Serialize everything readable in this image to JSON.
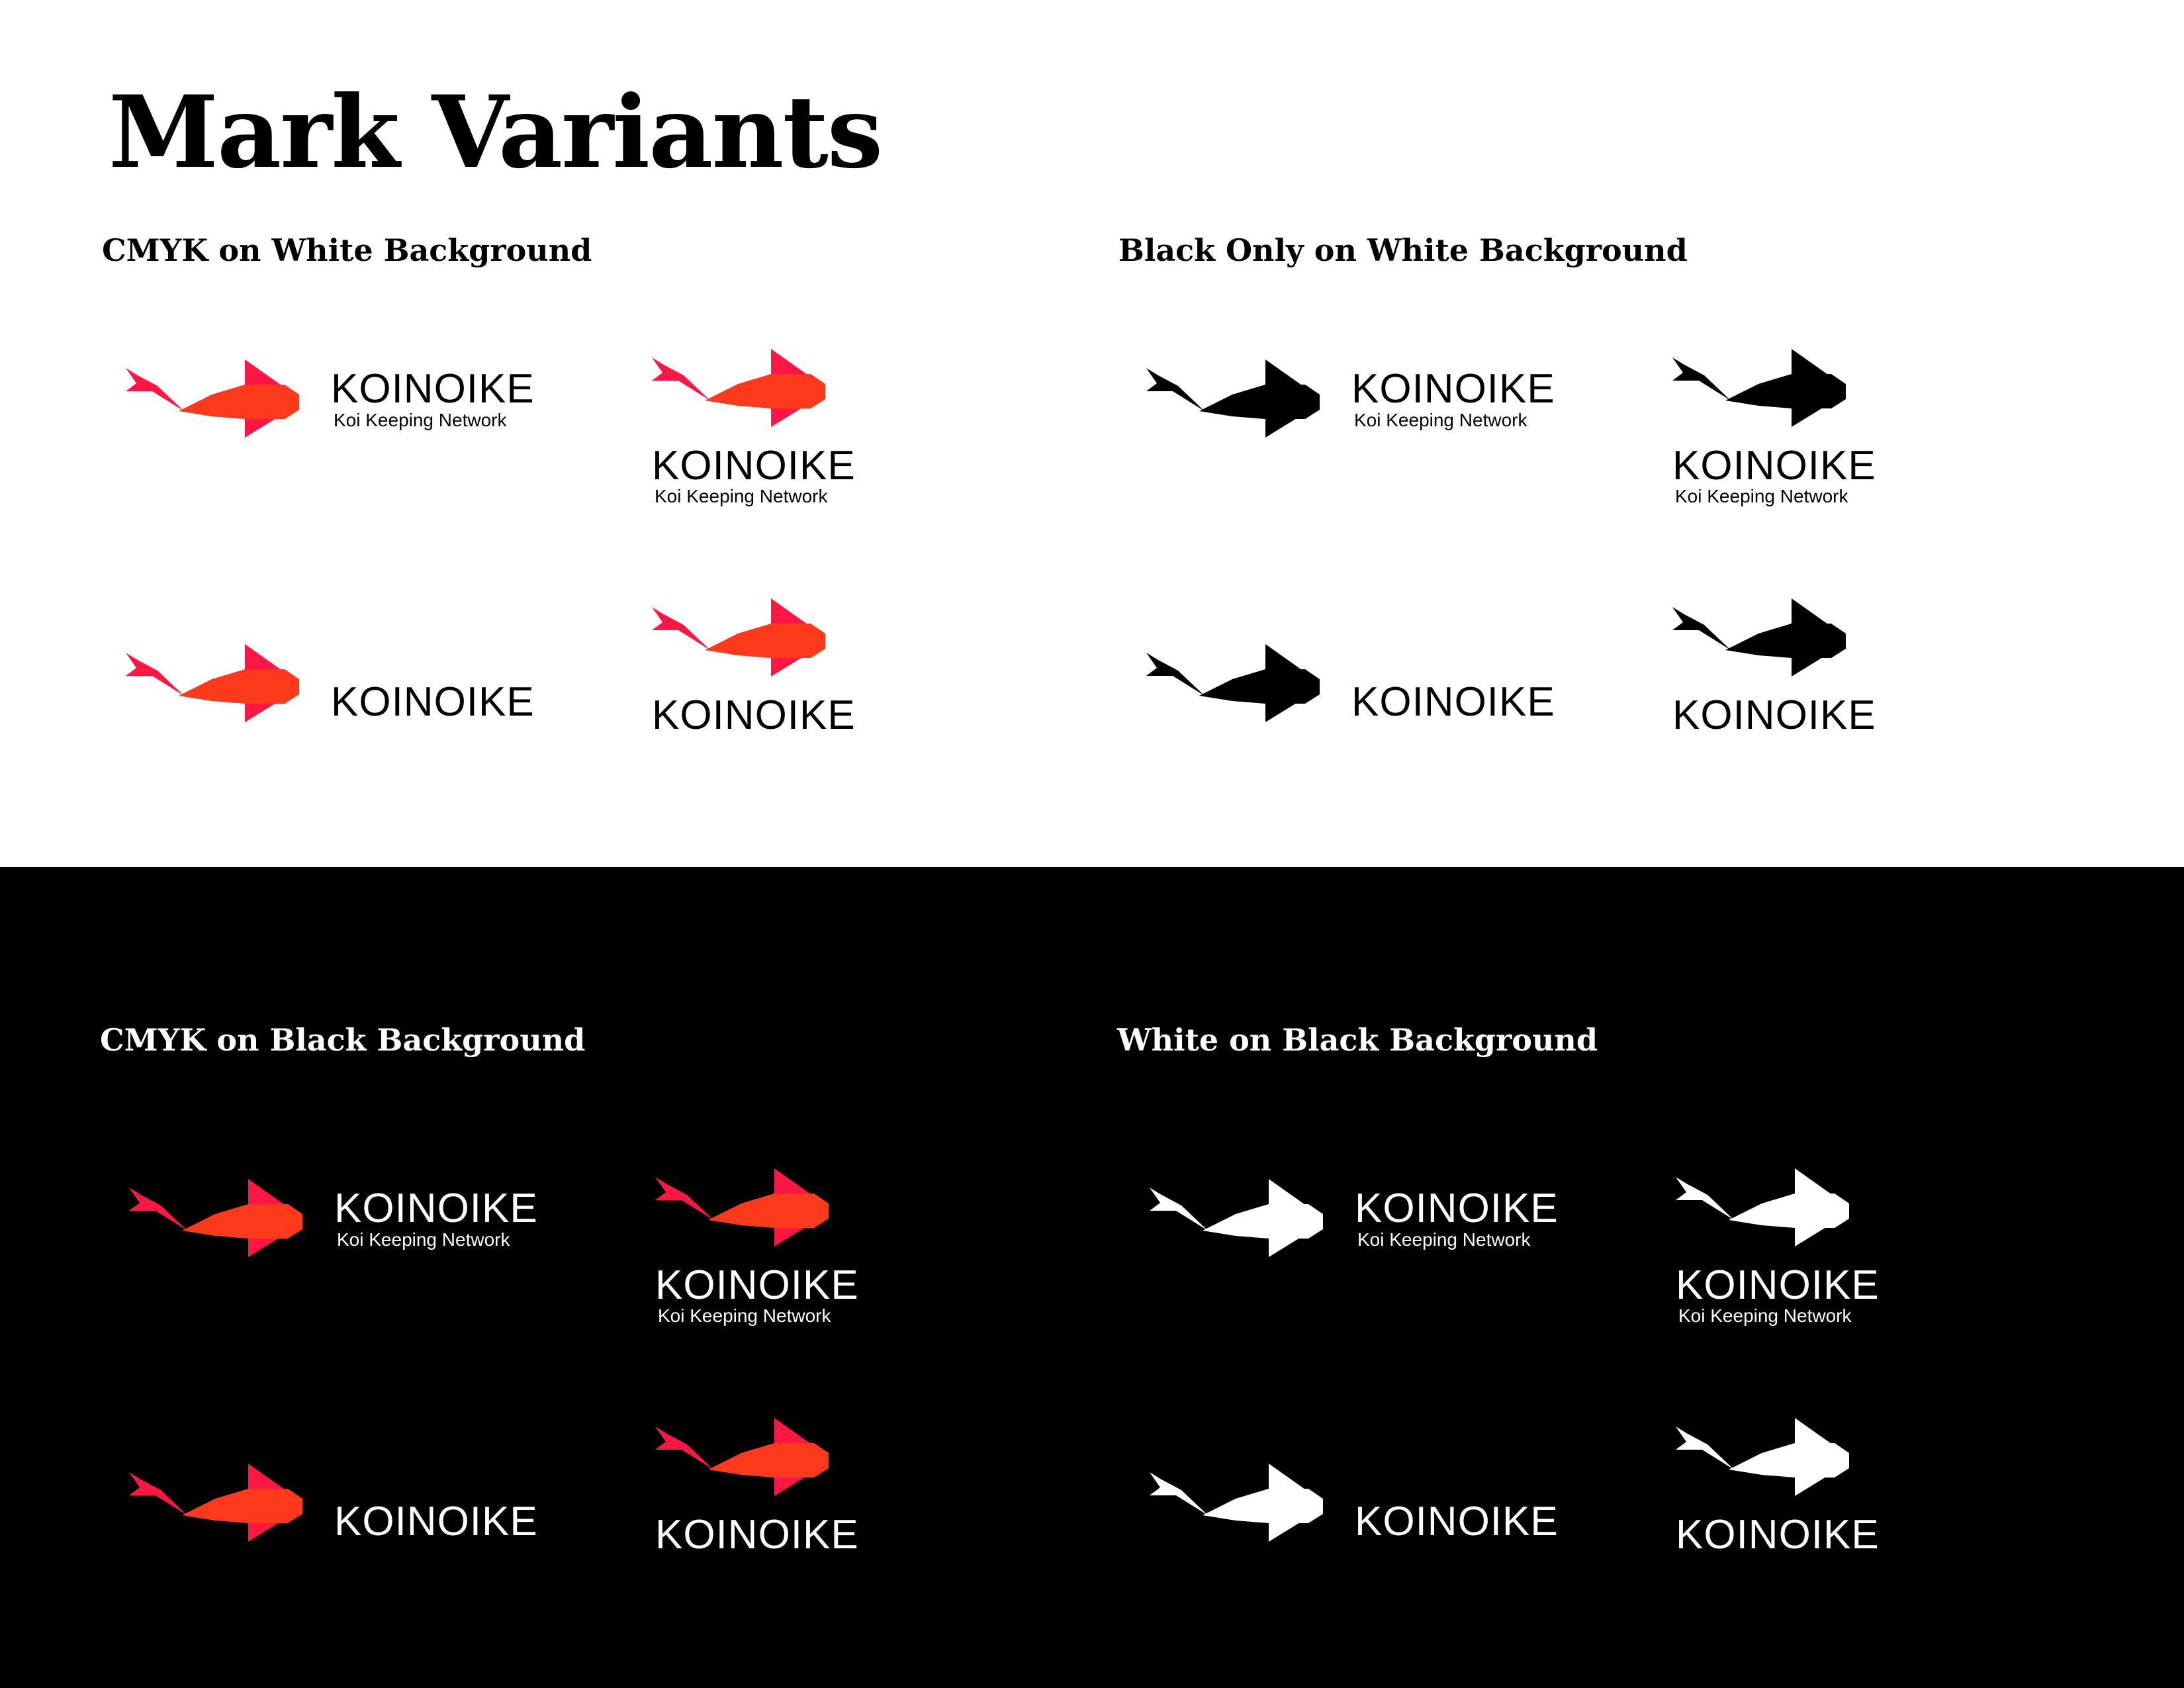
{
  "page": {
    "title": "Mark Variants",
    "dark_panel_color": "#000000",
    "light_panel_color": "#ffffff"
  },
  "brand": {
    "name": "KOINOIKE",
    "tagline": "Koi Keeping Network"
  },
  "colors": {
    "cmyk_body": "#ff3a1c",
    "cmyk_accent": "#ff1744",
    "black": "#000000",
    "white": "#ffffff"
  },
  "sections": [
    {
      "id": "cmyk-white",
      "heading": "CMYK on White Background",
      "mark_style": "cmyk",
      "text_color": "#000000",
      "heading_color": "#000000"
    },
    {
      "id": "black-white",
      "heading": "Black Only on White Background",
      "mark_style": "black",
      "text_color": "#000000",
      "heading_color": "#000000"
    },
    {
      "id": "cmyk-black",
      "heading": "CMYK on Black Background",
      "mark_style": "cmyk",
      "text_color": "#ffffff",
      "heading_color": "#ffffff"
    },
    {
      "id": "white-black",
      "heading": "White on Black Background",
      "mark_style": "white",
      "text_color": "#ffffff",
      "heading_color": "#ffffff"
    }
  ],
  "variants": [
    {
      "id": "horizontal-with-tagline",
      "layout": "horizontal",
      "tagline": true
    },
    {
      "id": "stacked-with-tagline",
      "layout": "stacked",
      "tagline": true
    },
    {
      "id": "horizontal-wordmark-only",
      "layout": "horizontal",
      "tagline": false
    },
    {
      "id": "stacked-wordmark-only",
      "layout": "stacked",
      "tagline": false
    }
  ]
}
